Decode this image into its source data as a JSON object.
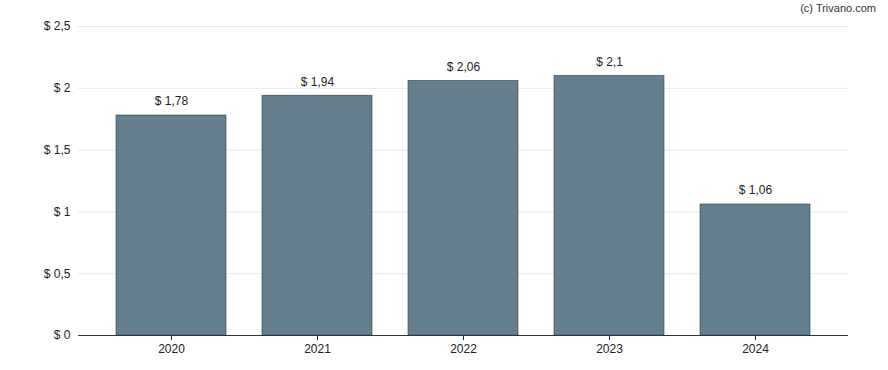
{
  "chart_data": {
    "type": "bar",
    "caption": "(c) Trivano.com",
    "categories": [
      "2020",
      "2021",
      "2022",
      "2023",
      "2024"
    ],
    "values": [
      1.78,
      1.94,
      2.06,
      2.1,
      1.06
    ],
    "value_labels": [
      "$ 1,78",
      "$ 1,94",
      "$ 2,06",
      "$ 2,1",
      "$ 1,06"
    ],
    "data_labels": true,
    "color": "#64808f",
    "ylim": [
      0,
      2.5
    ],
    "yticks": [
      {
        "value": 0,
        "label": "$ 0"
      },
      {
        "value": 0.5,
        "label": "$ 0,5"
      },
      {
        "value": 1,
        "label": "$ 1"
      },
      {
        "value": 1.5,
        "label": "$ 1,5"
      },
      {
        "value": 2,
        "label": "$ 2"
      },
      {
        "value": 2.5,
        "label": "$ 2,5"
      }
    ],
    "grid": true
  }
}
